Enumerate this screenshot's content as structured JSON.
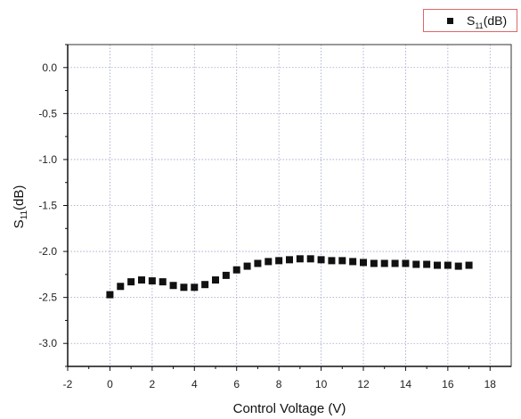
{
  "chart_data": {
    "type": "scatter",
    "xlabel": "Control Voltage (V)",
    "ylabel": "S11(dB)",
    "ylabel_main": "S",
    "ylabel_sub": "11",
    "ylabel_rest": "(dB)",
    "xlim": [
      -2,
      19
    ],
    "ylim": [
      -3.25,
      0.25
    ],
    "xticks": [
      -2,
      0,
      2,
      4,
      6,
      8,
      10,
      12,
      14,
      16,
      18
    ],
    "yticks": [
      0.0,
      -0.5,
      -1.0,
      -1.5,
      -2.0,
      -2.5,
      -3.0
    ],
    "xtick_labels": [
      "-2",
      "0",
      "2",
      "4",
      "6",
      "8",
      "10",
      "12",
      "14",
      "16",
      "18"
    ],
    "ytick_labels": [
      "0.0",
      "-0.5",
      "-1.0",
      "-1.5",
      "-2.0",
      "-2.5",
      "-3.0"
    ],
    "grid": true,
    "legend_position": "top-right",
    "series": [
      {
        "name": "S11(dB)",
        "name_main": "S",
        "name_sub": "11",
        "name_rest": "(dB)",
        "color": "#111111",
        "marker": "square",
        "x": [
          0,
          0.5,
          1,
          1.5,
          2,
          2.5,
          3,
          3.5,
          4,
          4.5,
          5,
          5.5,
          6,
          6.5,
          7,
          7.5,
          8,
          8.5,
          9,
          9.5,
          10,
          10.5,
          11,
          11.5,
          12,
          12.5,
          13,
          13.5,
          14,
          14.5,
          15,
          15.5,
          16,
          16.5,
          17
        ],
        "y": [
          -2.47,
          -2.38,
          -2.33,
          -2.31,
          -2.32,
          -2.33,
          -2.37,
          -2.39,
          -2.39,
          -2.36,
          -2.31,
          -2.26,
          -2.2,
          -2.16,
          -2.13,
          -2.11,
          -2.1,
          -2.09,
          -2.08,
          -2.08,
          -2.09,
          -2.1,
          -2.1,
          -2.11,
          -2.12,
          -2.13,
          -2.13,
          -2.13,
          -2.13,
          -2.14,
          -2.14,
          -2.15,
          -2.15,
          -2.16,
          -2.15
        ]
      }
    ]
  }
}
